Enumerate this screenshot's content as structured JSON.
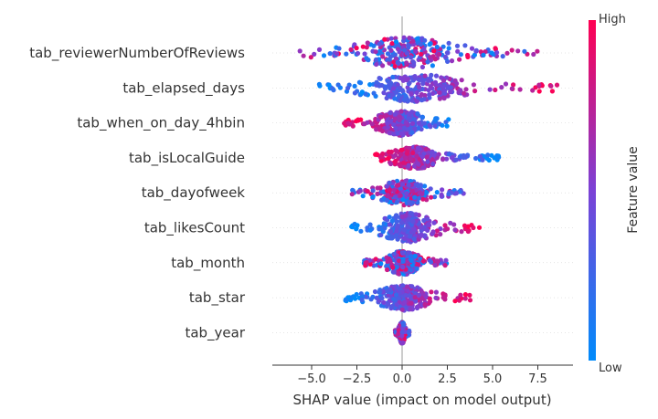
{
  "chart_data": {
    "type": "scatter",
    "subtype": "shap-beeswarm",
    "title": "",
    "xlabel": "SHAP value (impact on model output)",
    "ylabel": "",
    "xlim": [
      -7.1,
      9.3
    ],
    "xticks": [
      -5.0,
      -2.5,
      0.0,
      2.5,
      5.0,
      7.5
    ],
    "xtick_labels": [
      "−5.0",
      "−2.5",
      "0.0",
      "2.5",
      "5.0",
      "7.5"
    ],
    "features": [
      {
        "name": "tab_reviewerNumberOfReviews",
        "range": [
          -6.2,
          7.5
        ],
        "width": 17,
        "high_side": "mixed"
      },
      {
        "name": "tab_elapsed_days",
        "range": [
          -4.6,
          8.6
        ],
        "width": 15,
        "high_side": "right"
      },
      {
        "name": "tab_when_on_day_4hbin",
        "range": [
          -3.3,
          3.0
        ],
        "width": 14,
        "high_side": "left"
      },
      {
        "name": "tab_isLocalGuide",
        "range": [
          -1.6,
          5.4
        ],
        "width": 12,
        "high_side": "left"
      },
      {
        "name": "tab_dayofweek",
        "range": [
          -2.8,
          3.4
        ],
        "width": 14,
        "high_side": "mixed"
      },
      {
        "name": "tab_likesCount",
        "range": [
          -2.8,
          4.6
        ],
        "width": 16,
        "high_side": "right"
      },
      {
        "name": "tab_month",
        "range": [
          -2.1,
          2.5
        ],
        "width": 13,
        "high_side": "mixed"
      },
      {
        "name": "tab_star",
        "range": [
          -3.2,
          3.8
        ],
        "width": 14,
        "high_side": "right"
      },
      {
        "name": "tab_year",
        "range": [
          -0.4,
          0.4
        ],
        "width": 12,
        "high_side": "mixed"
      }
    ],
    "colorbar": {
      "label": "Feature value",
      "high_label": "High",
      "low_label": "Low",
      "high_color": "#ff0052",
      "mid_color": "#7b41d6",
      "low_color": "#008bfb"
    },
    "grid": false,
    "zero_line": true
  }
}
